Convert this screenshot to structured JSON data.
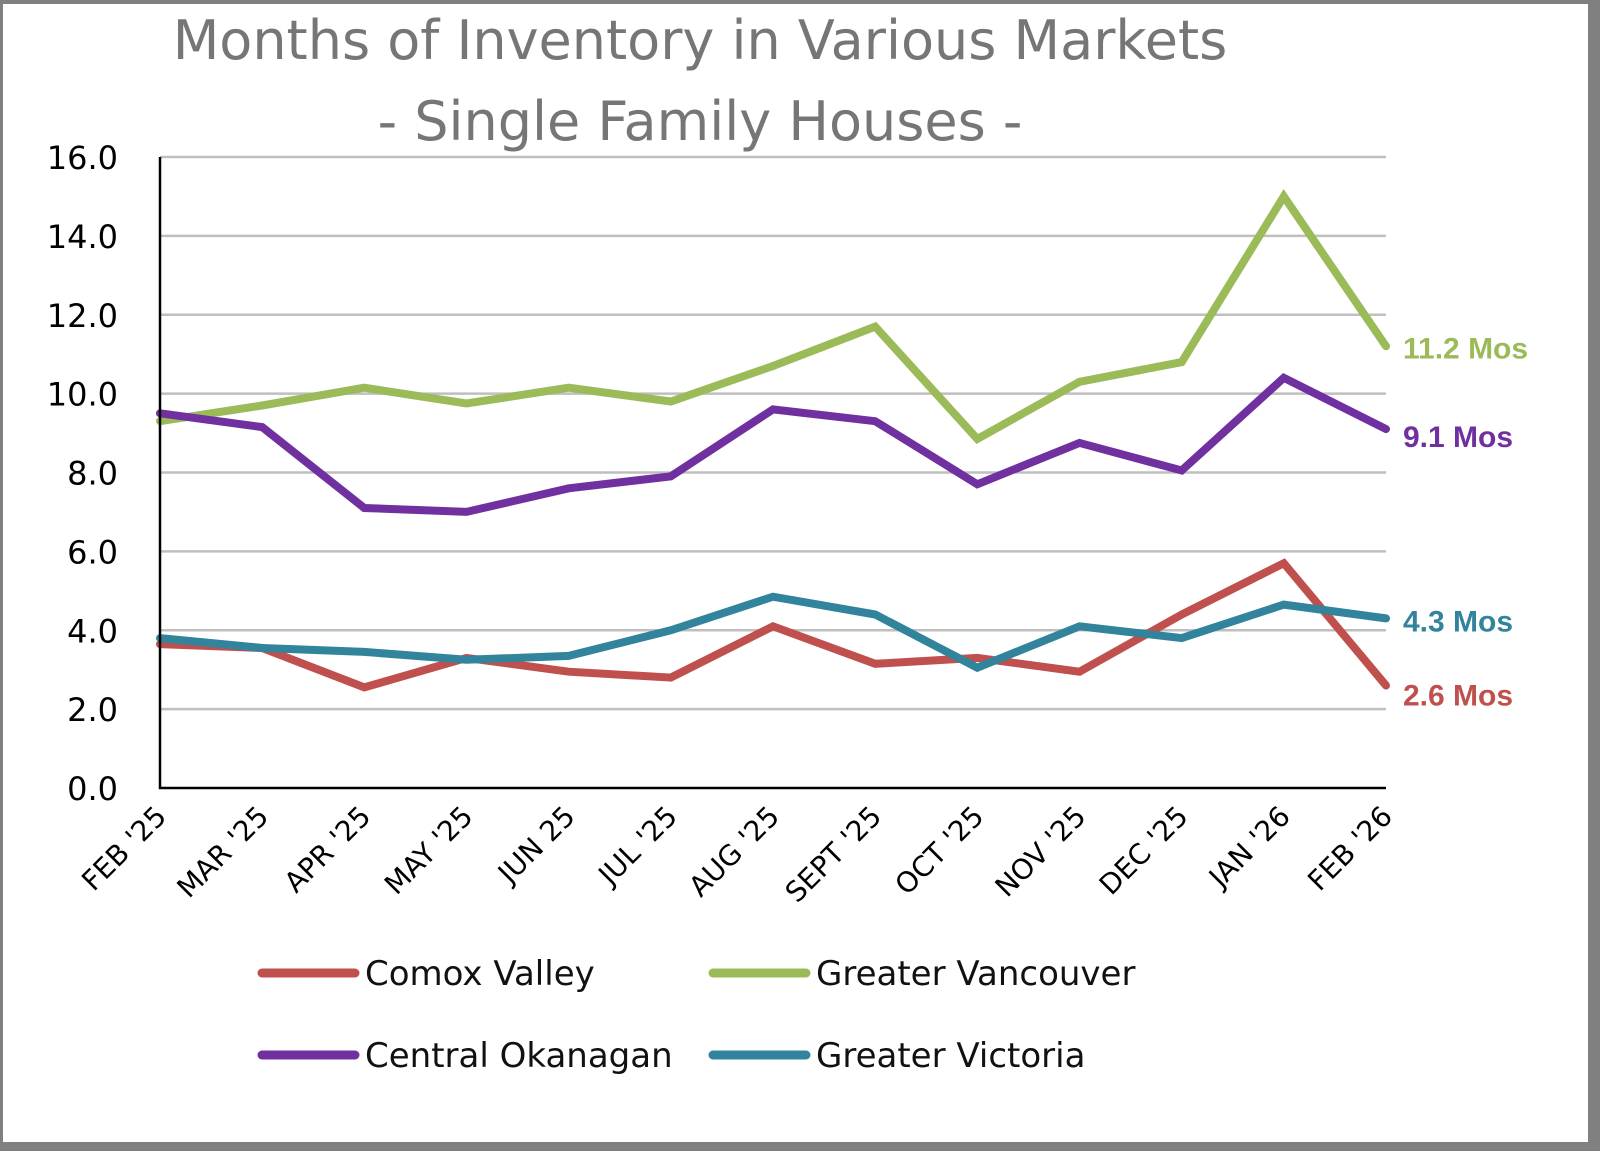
{
  "chart_data": {
    "type": "line",
    "title": "Months of Inventory in Various Markets",
    "subtitle": "- Single Family Houses -",
    "xlabel": "",
    "ylabel": "",
    "ylim": [
      0,
      16
    ],
    "yticks": [
      "0.0",
      "2.0",
      "4.0",
      "6.0",
      "8.0",
      "10.0",
      "12.0",
      "14.0",
      "16.0"
    ],
    "grid": true,
    "legend_position": "bottom",
    "categories": [
      "FEB '25",
      "MAR '25",
      "APR '25",
      "MAY '25",
      "JUN 25",
      "JUL '25",
      "AUG '25",
      "SEPT '25",
      "OCT '25",
      "NOV '25",
      "DEC '25",
      "JAN '26",
      "FEB '26"
    ],
    "series": [
      {
        "name": "Comox Valley",
        "color": "#C0504D",
        "values": [
          3.65,
          3.55,
          2.55,
          3.3,
          2.95,
          2.8,
          4.1,
          3.15,
          3.3,
          2.95,
          4.4,
          5.7,
          2.6
        ],
        "end_label": "2.6 Mos"
      },
      {
        "name": "Greater Vancouver",
        "color": "#9BBB59",
        "values": [
          9.3,
          9.7,
          10.15,
          9.75,
          10.15,
          9.8,
          10.7,
          11.7,
          8.85,
          10.3,
          10.8,
          15.0,
          11.2
        ],
        "end_label": "11.2 Mos"
      },
      {
        "name": "Central Okanagan",
        "color": "#7030A0",
        "values": [
          9.5,
          9.15,
          7.1,
          7.0,
          7.6,
          7.9,
          9.6,
          9.3,
          7.7,
          8.75,
          8.05,
          10.4,
          9.1
        ],
        "end_label": "9.1 Mos"
      },
      {
        "name": "Greater Victoria",
        "color": "#31849B",
        "values": [
          3.8,
          3.55,
          3.45,
          3.25,
          3.35,
          4.0,
          4.85,
          4.4,
          3.05,
          4.1,
          3.8,
          4.65,
          4.3
        ],
        "end_label": "4.3 Mos"
      }
    ],
    "legend": [
      {
        "name": "Comox Valley",
        "color": "#C0504D"
      },
      {
        "name": "Greater Vancouver",
        "color": "#9BBB59"
      },
      {
        "name": "Central Okanagan",
        "color": "#7030A0"
      },
      {
        "name": "Greater Victoria",
        "color": "#31849B"
      }
    ]
  },
  "colors": {
    "frame": "#808080",
    "gridline": "#BFBFBF",
    "axis": "#000000",
    "title": "#767676"
  }
}
